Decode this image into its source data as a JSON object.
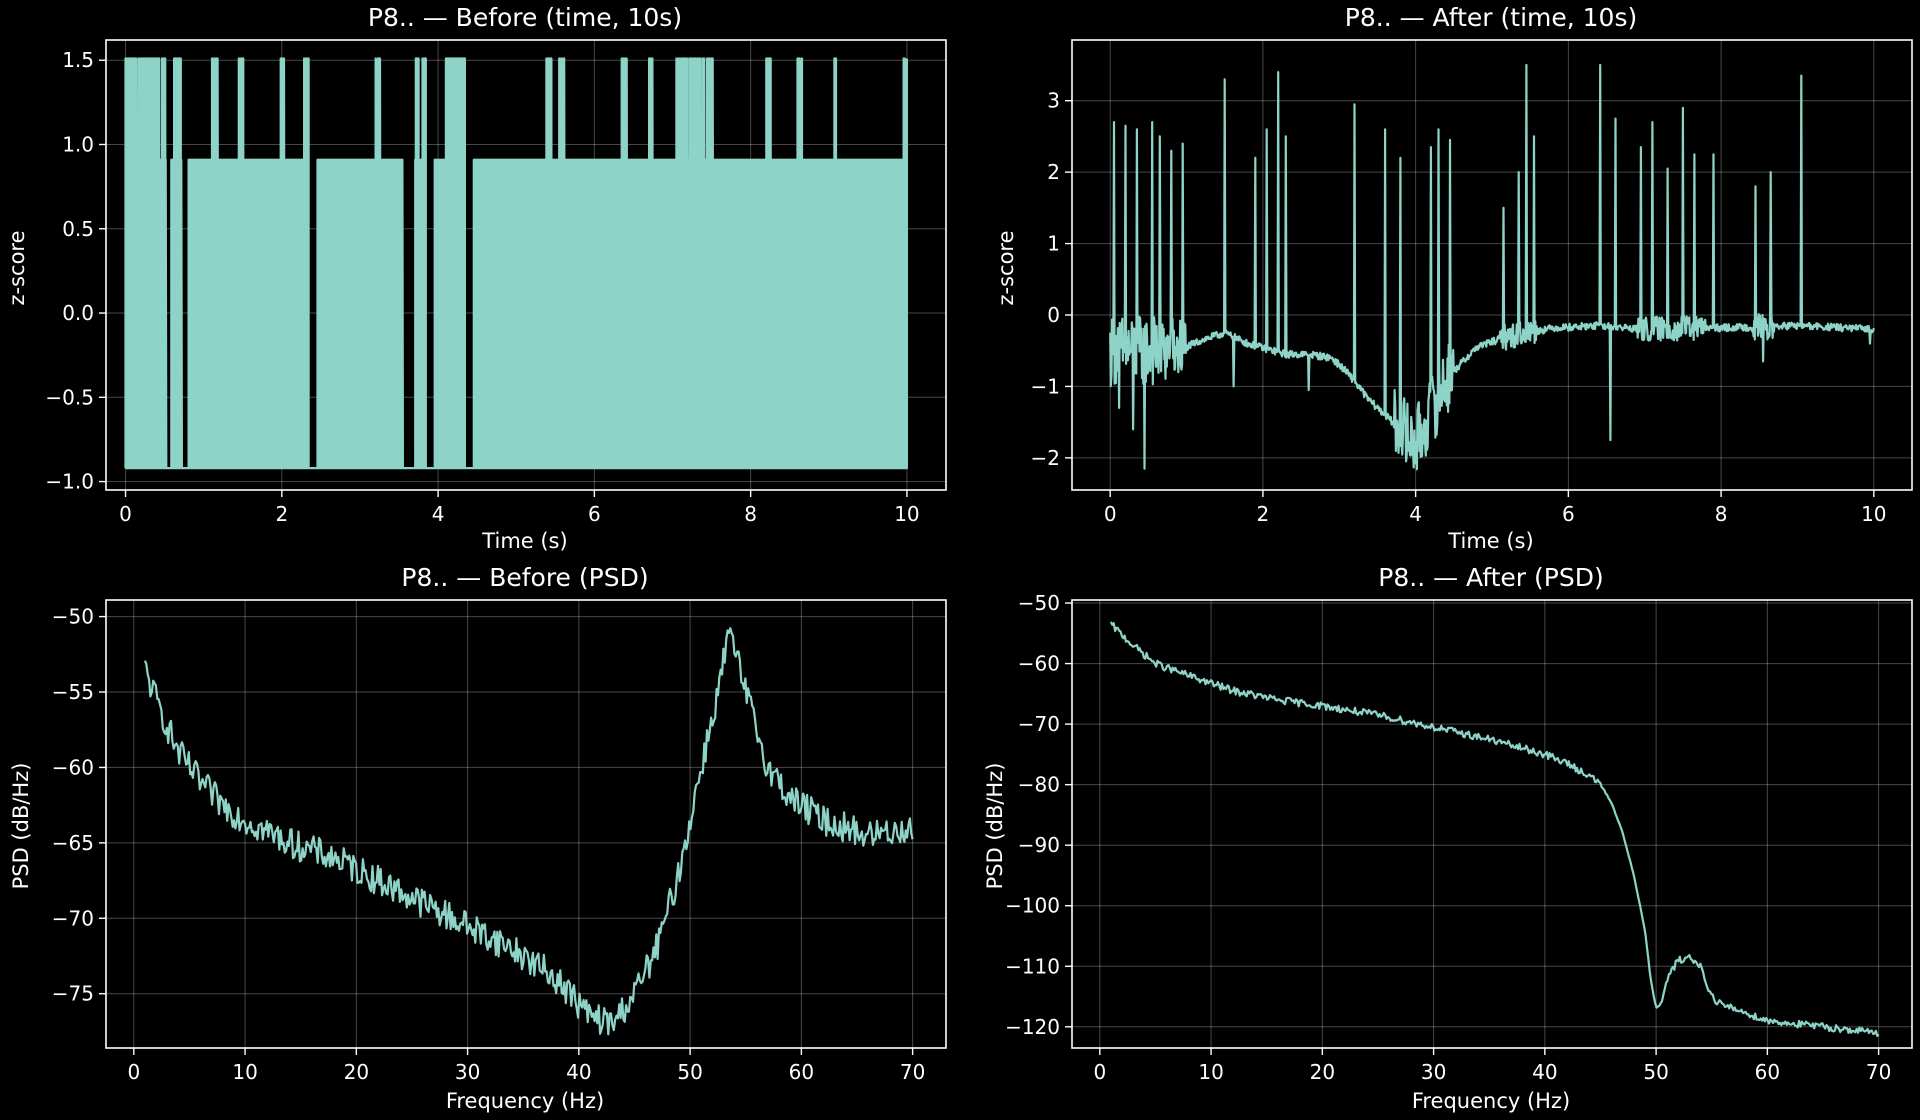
{
  "chart_data": [
    {
      "id": "p1",
      "type": "line",
      "title": "P8.. — Before (time, 10s)",
      "xlabel": "Time (s)",
      "ylabel": "z-score",
      "xlim": [
        -0.25,
        10.5
      ],
      "ylim": [
        -1.05,
        1.62
      ],
      "xticks": [
        0,
        2,
        4,
        6,
        8,
        10
      ],
      "yticks": [
        -1.0,
        -0.5,
        0.0,
        0.5,
        1.0,
        1.5
      ],
      "ytick_labels": [
        "−1.0",
        "−0.5",
        "0.0",
        "0.5",
        "1.0",
        "1.5"
      ],
      "grid": true,
      "color": "#8dd3c7",
      "series": [
        {
          "low": -0.92,
          "mid": 0.91,
          "high": 1.51,
          "x_start": 0.0,
          "x_end": 10.0,
          "bursts": [
            [
              0.0,
              0.55
            ],
            [
              0.62,
              0.72
            ],
            [
              1.1,
              1.18
            ],
            [
              1.45,
              1.52
            ],
            [
              1.98,
              2.03
            ],
            [
              2.28,
              2.44
            ],
            [
              3.2,
              3.26
            ],
            [
              3.55,
              3.95
            ],
            [
              4.1,
              4.42
            ],
            [
              5.38,
              5.45
            ],
            [
              5.55,
              5.62
            ],
            [
              6.35,
              6.42
            ],
            [
              6.7,
              6.75
            ],
            [
              7.05,
              7.52
            ],
            [
              8.2,
              8.26
            ],
            [
              8.6,
              8.66
            ],
            [
              9.05,
              9.1
            ],
            [
              9.95,
              10.0
            ]
          ],
          "gaps": [
            [
              0.52,
              0.58
            ],
            [
              0.72,
              0.8
            ],
            [
              2.35,
              2.45
            ],
            [
              3.55,
              3.7
            ],
            [
              3.85,
              3.95
            ],
            [
              4.35,
              4.45
            ]
          ]
        }
      ]
    },
    {
      "id": "p2",
      "type": "line",
      "title": "P8.. — After (time, 10s)",
      "xlabel": "Time (s)",
      "ylabel": "z-score",
      "xlim": [
        -0.5,
        10.5
      ],
      "ylim": [
        -2.45,
        3.85
      ],
      "xticks": [
        0,
        2,
        4,
        6,
        8,
        10
      ],
      "yticks": [
        -2,
        -1,
        0,
        1,
        2,
        3
      ],
      "ytick_labels": [
        "−2",
        "−1",
        "0",
        "1",
        "2",
        "3"
      ],
      "grid": true,
      "color": "#8dd3c7",
      "series": [
        {
          "baseline": [
            [
              0.0,
              -0.5
            ],
            [
              0.9,
              -0.5
            ],
            [
              1.2,
              -0.35
            ],
            [
              1.5,
              -0.25
            ],
            [
              1.8,
              -0.4
            ],
            [
              2.3,
              -0.55
            ],
            [
              2.6,
              -0.55
            ],
            [
              2.9,
              -0.6
            ],
            [
              3.1,
              -0.8
            ],
            [
              3.4,
              -1.2
            ],
            [
              3.8,
              -1.6
            ],
            [
              4.0,
              -1.8
            ],
            [
              4.4,
              -0.9
            ],
            [
              4.8,
              -0.45
            ],
            [
              5.2,
              -0.3
            ],
            [
              5.8,
              -0.18
            ],
            [
              6.4,
              -0.15
            ],
            [
              7.0,
              -0.2
            ],
            [
              8.0,
              -0.18
            ],
            [
              9.0,
              -0.15
            ],
            [
              10.0,
              -0.2
            ]
          ],
          "spikes": [
            [
              0.05,
              2.7
            ],
            [
              0.12,
              -1.3
            ],
            [
              0.2,
              2.65
            ],
            [
              0.3,
              -1.6
            ],
            [
              0.35,
              2.6
            ],
            [
              0.45,
              -2.15
            ],
            [
              0.55,
              2.7
            ],
            [
              0.65,
              2.5
            ],
            [
              0.8,
              2.3
            ],
            [
              0.95,
              2.4
            ],
            [
              1.5,
              3.3
            ],
            [
              1.62,
              -1.0
            ],
            [
              1.9,
              2.2
            ],
            [
              2.05,
              2.6
            ],
            [
              2.2,
              3.4
            ],
            [
              2.3,
              2.5
            ],
            [
              2.6,
              -1.05
            ],
            [
              3.2,
              2.95
            ],
            [
              3.35,
              -1.1
            ],
            [
              3.6,
              2.6
            ],
            [
              3.8,
              2.2
            ],
            [
              3.9,
              -1.9
            ],
            [
              4.0,
              -2.05
            ],
            [
              4.1,
              -1.8
            ],
            [
              4.2,
              2.35
            ],
            [
              4.3,
              2.6
            ],
            [
              4.45,
              2.45
            ],
            [
              5.15,
              1.5
            ],
            [
              5.35,
              2.0
            ],
            [
              5.45,
              3.5
            ],
            [
              5.55,
              2.5
            ],
            [
              6.42,
              3.5
            ],
            [
              6.55,
              -1.75
            ],
            [
              6.62,
              2.75
            ],
            [
              6.95,
              2.35
            ],
            [
              7.1,
              2.7
            ],
            [
              7.3,
              2.05
            ],
            [
              7.5,
              2.9
            ],
            [
              7.65,
              2.25
            ],
            [
              7.9,
              2.25
            ],
            [
              8.45,
              1.8
            ],
            [
              8.55,
              -0.65
            ],
            [
              8.65,
              2.0
            ],
            [
              9.05,
              3.35
            ],
            [
              9.95,
              -0.4
            ]
          ]
        }
      ]
    },
    {
      "id": "p3",
      "type": "line",
      "title": "P8.. — Before (PSD)",
      "xlabel": "Frequency (Hz)",
      "ylabel": "PSD (dB/Hz)",
      "xlim": [
        -2.5,
        73
      ],
      "ylim": [
        -78.6,
        -48.9
      ],
      "xticks": [
        0,
        10,
        20,
        30,
        40,
        50,
        60,
        70
      ],
      "yticks": [
        -75,
        -70,
        -65,
        -60,
        -55,
        -50
      ],
      "ytick_labels": [
        "−75",
        "−70",
        "−65",
        "−60",
        "−55",
        "−50"
      ],
      "grid": true,
      "color": "#8dd3c7",
      "series": [
        {
          "curve": [
            [
              1,
              -53.5
            ],
            [
              2,
              -55.5
            ],
            [
              4,
              -59
            ],
            [
              6,
              -61
            ],
            [
              8,
              -62.5
            ],
            [
              10,
              -63.5
            ],
            [
              14,
              -65
            ],
            [
              18,
              -66
            ],
            [
              22,
              -67.5
            ],
            [
              26,
              -69
            ],
            [
              30,
              -70.5
            ],
            [
              34,
              -72
            ],
            [
              38,
              -74
            ],
            [
              41,
              -76.5
            ],
            [
              43,
              -77
            ],
            [
              45,
              -75
            ],
            [
              47,
              -72
            ],
            [
              49,
              -67
            ],
            [
              51,
              -60
            ],
            [
              52.5,
              -55
            ],
            [
              53.5,
              -51
            ],
            [
              55,
              -55
            ],
            [
              57,
              -60
            ],
            [
              59,
              -62
            ],
            [
              62,
              -63.5
            ],
            [
              66,
              -64.5
            ],
            [
              70,
              -64
            ]
          ],
          "noise": 1.0
        }
      ]
    },
    {
      "id": "p4",
      "type": "line",
      "title": "P8.. — After (PSD)",
      "xlabel": "Frequency (Hz)",
      "ylabel": "PSD (dB/Hz)",
      "xlim": [
        -2.5,
        73
      ],
      "ylim": [
        -123.5,
        -49.5
      ],
      "xticks": [
        0,
        10,
        20,
        30,
        40,
        50,
        60,
        70
      ],
      "yticks": [
        -120,
        -110,
        -100,
        -90,
        -80,
        -70,
        -60,
        -50
      ],
      "ytick_labels": [
        "−120",
        "−110",
        "−100",
        "−90",
        "−80",
        "−70",
        "−60",
        "−50"
      ],
      "grid": true,
      "color": "#8dd3c7",
      "series": [
        {
          "curve": [
            [
              1,
              -53.5
            ],
            [
              3,
              -57
            ],
            [
              5,
              -60
            ],
            [
              8,
              -62
            ],
            [
              12,
              -64.5
            ],
            [
              16,
              -66
            ],
            [
              20,
              -67
            ],
            [
              25,
              -68.5
            ],
            [
              30,
              -70.5
            ],
            [
              35,
              -72.5
            ],
            [
              38,
              -74
            ],
            [
              40,
              -75
            ],
            [
              42,
              -76.5
            ],
            [
              44,
              -78.5
            ],
            [
              45,
              -80
            ],
            [
              46,
              -83
            ],
            [
              47,
              -88
            ],
            [
              48,
              -95
            ],
            [
              49,
              -104
            ],
            [
              49.5,
              -112
            ],
            [
              50,
              -117
            ],
            [
              50.5,
              -116
            ],
            [
              51,
              -112
            ],
            [
              52,
              -109
            ],
            [
              53,
              -108.5
            ],
            [
              54,
              -110
            ],
            [
              55,
              -115
            ],
            [
              56,
              -116.5
            ],
            [
              57,
              -117
            ],
            [
              60,
              -119
            ],
            [
              65,
              -120
            ],
            [
              70,
              -121
            ]
          ],
          "noise": 0.6
        }
      ]
    }
  ]
}
